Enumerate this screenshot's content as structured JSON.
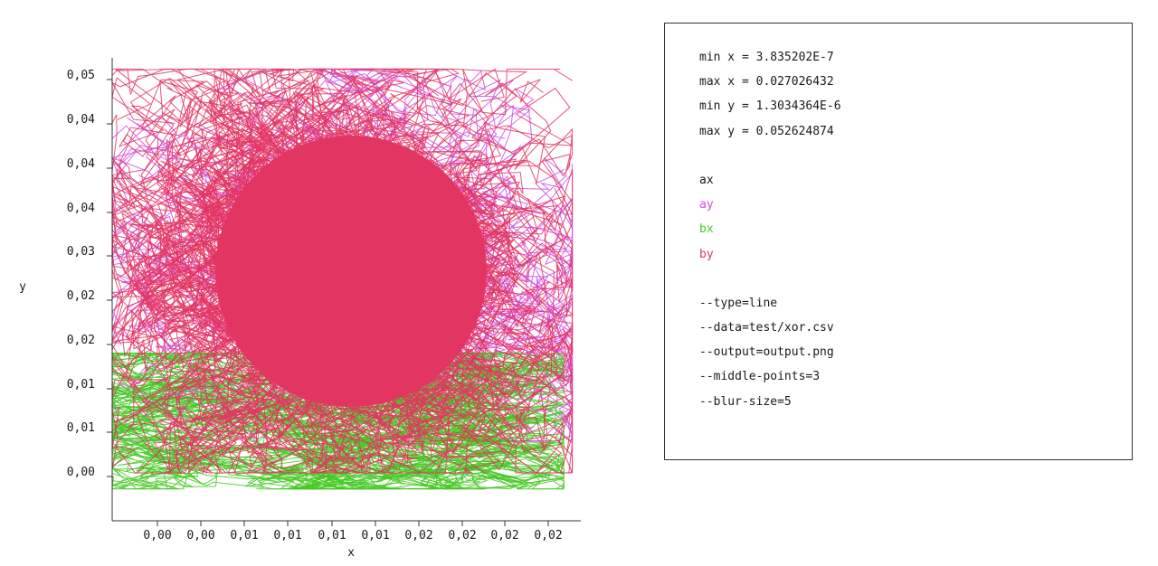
{
  "chart_data": {
    "type": "line",
    "title": "",
    "xlabel": "x",
    "ylabel": "y",
    "x_ticks": [
      "0,00",
      "0,00",
      "0,01",
      "0,01",
      "0,01",
      "0,01",
      "0,02",
      "0,02",
      "0,02",
      "0,02"
    ],
    "y_ticks": [
      "0,00",
      "0,01",
      "0,01",
      "0,02",
      "0,02",
      "0,03",
      "0,04",
      "0,04",
      "0,04",
      "0,05"
    ],
    "xlim": [
      0.0,
      0.0275
    ],
    "ylim": [
      -0.004,
      0.054
    ],
    "grid": false,
    "legend": "right-panel",
    "series": [
      {
        "name": "ay",
        "color": "#d04de0",
        "x_range": [
          0.0,
          0.027
        ],
        "y_range": [
          0.006,
          0.0526
        ]
      },
      {
        "name": "bx",
        "color": "#44c922",
        "x_range": [
          0.0,
          0.0265
        ],
        "y_range": [
          0.0,
          0.017
        ]
      },
      {
        "name": "by",
        "color": "#e33562",
        "x_range": [
          0.0,
          0.027
        ],
        "y_range": [
          0.002,
          0.0526
        ]
      }
    ]
  },
  "info": {
    "stats": [
      "min x = 3.835202E-7",
      "max x = 0.027026432",
      "min y = 1.3034364E-6",
      "max y = 0.052624874"
    ],
    "legend": [
      {
        "label": "ax",
        "color": "#1a1a1a"
      },
      {
        "label": "ay",
        "color": "#d04de0"
      },
      {
        "label": "bx",
        "color": "#44c922"
      },
      {
        "label": "by",
        "color": "#e33562"
      }
    ],
    "args": [
      "--type=line",
      "--data=test/xor.csv",
      "--output=output.png",
      "--middle-points=3",
      "--blur-size=5"
    ]
  }
}
